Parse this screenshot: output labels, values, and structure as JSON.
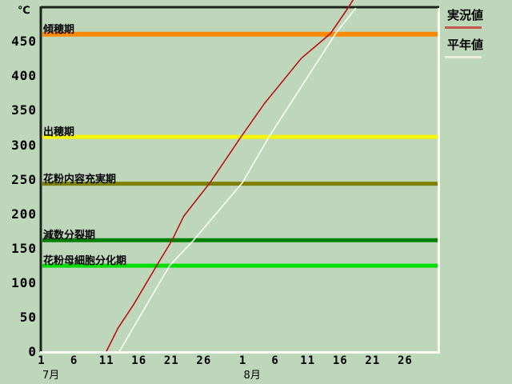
{
  "page": {
    "background": "#bed7bb"
  },
  "chart_data": {
    "type": "line",
    "title": "",
    "unit_label": "℃",
    "y_axis": {
      "ticks": [
        0,
        50,
        100,
        150,
        200,
        250,
        300,
        350,
        400,
        450
      ],
      "lim": [
        0,
        498
      ]
    },
    "x_axis": {
      "lim_days": [
        1,
        62
      ],
      "ticks": [
        {
          "day": 1,
          "label": "1"
        },
        {
          "day": 6,
          "label": "6"
        },
        {
          "day": 11,
          "label": "11"
        },
        {
          "day": 16,
          "label": "16"
        },
        {
          "day": 21,
          "label": "21"
        },
        {
          "day": 26,
          "label": "26"
        },
        {
          "day": 32,
          "label": "1"
        },
        {
          "day": 37,
          "label": "6"
        },
        {
          "day": 42,
          "label": "11"
        },
        {
          "day": 47,
          "label": "16"
        },
        {
          "day": 52,
          "label": "21"
        },
        {
          "day": 57,
          "label": "26"
        }
      ],
      "months": [
        {
          "label": "7月",
          "start_day": 1
        },
        {
          "label": "8月",
          "start_day": 32
        }
      ]
    },
    "stage_lines": [
      {
        "label": "傾穂期",
        "value": 460,
        "color": "#ff8a00",
        "width": 6
      },
      {
        "label": "出穂期",
        "value": 311,
        "color": "#f6f600",
        "width": 5
      },
      {
        "label": "花粉内容充実期",
        "value": 243,
        "color": "#808000",
        "width": 5
      },
      {
        "label": "減数分裂期",
        "value": 161,
        "color": "#008000",
        "width": 5
      },
      {
        "label": "花粉母細胞分化期",
        "value": 124,
        "color": "#00dd00",
        "width": 5
      }
    ],
    "series": [
      {
        "name": "実況値",
        "color": "#bb1111",
        "width": 1.6,
        "points": [
          [
            11,
            0
          ],
          [
            12.8,
            34
          ],
          [
            15.2,
            68
          ],
          [
            18.9,
            127
          ],
          [
            21.1,
            161
          ],
          [
            22.9,
            196
          ],
          [
            26.9,
            244
          ],
          [
            31.8,
            312
          ],
          [
            35.3,
            359
          ],
          [
            41,
            425
          ],
          [
            45.5,
            461
          ],
          [
            48.2,
            498
          ],
          [
            49,
            510
          ]
        ]
      },
      {
        "name": "平年値",
        "color": "#fcfcf4",
        "width": 1.6,
        "points": [
          [
            13,
            0
          ],
          [
            20.7,
            124
          ],
          [
            24.4,
            161
          ],
          [
            31.9,
            244
          ],
          [
            36.1,
            312
          ],
          [
            46.3,
            461
          ],
          [
            49.4,
            498
          ]
        ]
      }
    ],
    "legend": {
      "position": "top-right",
      "items": [
        {
          "label": "実況値",
          "swatch_color": "#c25a50"
        },
        {
          "label": "平年値",
          "swatch_color": "#e9eedd"
        }
      ]
    },
    "grid": false
  }
}
